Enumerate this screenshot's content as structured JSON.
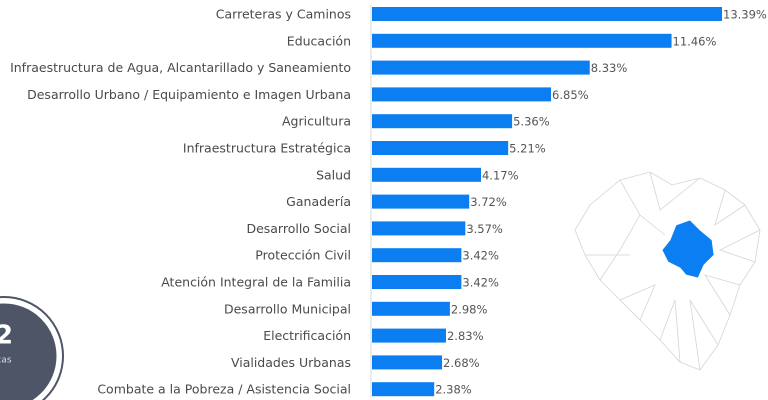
{
  "chart_data": {
    "type": "bar",
    "orientation": "horizontal",
    "categories": [
      "Carreteras y Caminos",
      "Educación",
      "Infraestructura de Agua, Alcantarillado y Saneamiento",
      "Desarrollo Urbano / Equipamiento e Imagen Urbana",
      "Agricultura",
      "Infraestructura Estratégica",
      "Salud",
      "Ganadería",
      "Desarrollo Social",
      "Protección Civil",
      "Atención Integral de la Familia",
      "Desarrollo Municipal",
      "Electrificación",
      "Vialidades Urbanas",
      "Combate a la Pobreza / Asistencia Social"
    ],
    "values": [
      13.39,
      11.46,
      8.33,
      6.85,
      5.36,
      5.21,
      4.17,
      3.72,
      3.57,
      3.42,
      3.42,
      2.98,
      2.83,
      2.68,
      2.38
    ],
    "value_labels": [
      "13.39%",
      "11.46%",
      "8.33%",
      "6.85%",
      "5.36%",
      "5.21%",
      "4.17%",
      "3.72%",
      "3.57%",
      "3.42%",
      "3.42%",
      "2.98%",
      "2.83%",
      "2.68%",
      "2.38%"
    ],
    "color": "#0b7ef2"
  },
  "badge": {
    "number": "2",
    "caption": "cas"
  }
}
